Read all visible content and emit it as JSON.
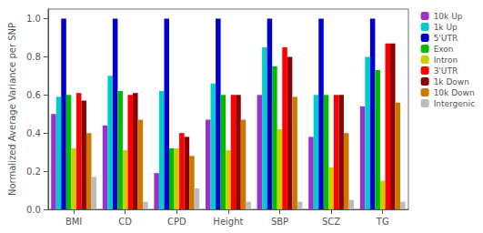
{
  "chart_data": {
    "type": "bar",
    "categories": [
      "BMI",
      "CD",
      "CPD",
      "Height",
      "SBP",
      "SCZ",
      "TG"
    ],
    "series": [
      {
        "name": "10k Up",
        "color": "#9933CC",
        "values": [
          0.5,
          0.44,
          0.19,
          0.47,
          0.6,
          0.38,
          0.54
        ]
      },
      {
        "name": "1k Up",
        "color": "#00CCCC",
        "values": [
          0.59,
          0.7,
          0.62,
          0.66,
          0.85,
          0.6,
          0.8
        ]
      },
      {
        "name": "5'UTR",
        "color": "#0000CC",
        "values": [
          1.0,
          1.0,
          1.0,
          1.0,
          1.0,
          1.0,
          1.0
        ]
      },
      {
        "name": "Exon",
        "color": "#00BB00",
        "values": [
          0.6,
          0.62,
          0.32,
          0.6,
          0.75,
          0.6,
          0.73
        ]
      },
      {
        "name": "Intron",
        "color": "#CCCC00",
        "values": [
          0.32,
          0.31,
          0.32,
          0.31,
          0.42,
          0.22,
          0.15
        ]
      },
      {
        "name": "3'UTR",
        "color": "#FF0000",
        "values": [
          0.61,
          0.6,
          0.4,
          0.6,
          0.85,
          0.6,
          0.87
        ]
      },
      {
        "name": "1k Down",
        "color": "#8B0000",
        "values": [
          0.57,
          0.61,
          0.38,
          0.6,
          0.8,
          0.6,
          0.87
        ]
      },
      {
        "name": "10k Down",
        "color": "#CC7700",
        "values": [
          0.4,
          0.47,
          0.28,
          0.47,
          0.59,
          0.4,
          0.56
        ]
      },
      {
        "name": "Intergenic",
        "color": "#BBBBBB",
        "values": [
          0.17,
          0.04,
          0.11,
          0.04,
          0.04,
          0.05,
          0.04
        ]
      }
    ],
    "ylabel": "Normalized Average Variance per SNP",
    "ylim": [
      0.0,
      1.05
    ],
    "yticks": [
      {
        "value": 0.0,
        "label": "0.0"
      },
      0.2,
      0.4,
      0.6,
      0.8,
      {
        "value": 1.0,
        "label": "1.0"
      }
    ],
    "grid": false,
    "legend": "upper right"
  }
}
